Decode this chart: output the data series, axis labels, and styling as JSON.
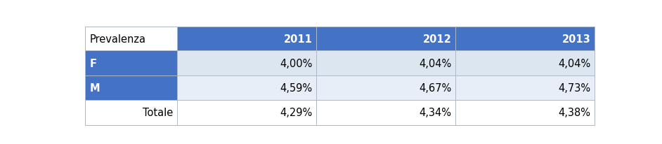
{
  "title_col": "Prevalenza",
  "headers": [
    "2011",
    "2012",
    "2013"
  ],
  "rows": [
    {
      "label": "F",
      "values": [
        "4,00%",
        "4,04%",
        "4,04%"
      ],
      "label_bg": "#4472C4",
      "label_color": "white",
      "row_bg": "#DCE6F1",
      "label_bold": true,
      "label_ha": "left"
    },
    {
      "label": "M",
      "values": [
        "4,59%",
        "4,67%",
        "4,73%"
      ],
      "label_bg": "#4472C4",
      "label_color": "white",
      "row_bg": "#E8EEF7",
      "label_bold": true,
      "label_ha": "left"
    },
    {
      "label": "Totale",
      "values": [
        "4,29%",
        "4,34%",
        "4,38%"
      ],
      "label_bg": "#FFFFFF",
      "label_color": "black",
      "row_bg": "#FFFFFF",
      "label_bold": false,
      "label_ha": "right"
    }
  ],
  "header_bg": "#4472C4",
  "header_color": "white",
  "title_col_bg": "#FFFFFF",
  "title_col_color": "black",
  "border_color": "#B0B8C8",
  "font_size": 10.5,
  "header_font_size": 10.5
}
